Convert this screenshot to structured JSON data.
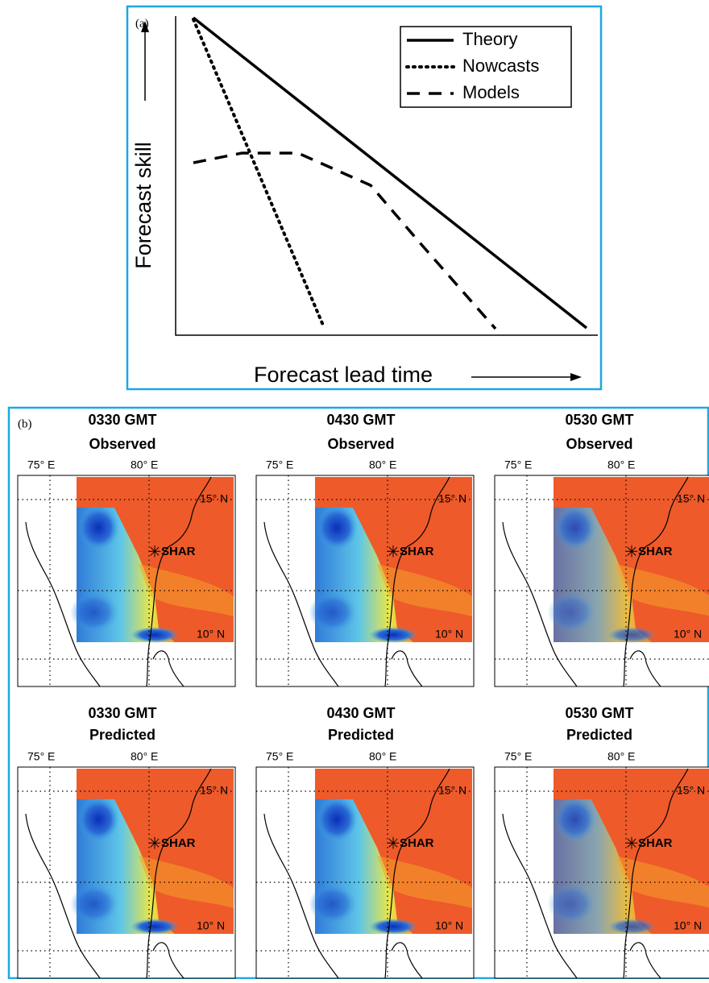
{
  "panel_a": {
    "label": "(a)",
    "y_axis_label": "Forecast skill",
    "x_axis_label": "Forecast lead time",
    "legend": [
      "Theory",
      "Nowcasts",
      "Models"
    ]
  },
  "panel_b": {
    "label": "(b)",
    "lon_labels": [
      "75° E",
      "80° E"
    ],
    "lat_labels": [
      "15° N",
      "10° N"
    ],
    "station": "SHAR",
    "panels": [
      {
        "time": "0330 GMT",
        "kind": "Observed"
      },
      {
        "time": "0430 GMT",
        "kind": "Observed"
      },
      {
        "time": "0530 GMT",
        "kind": "Observed"
      },
      {
        "time": "0330 GMT",
        "kind": "Predicted"
      },
      {
        "time": "0430 GMT",
        "kind": "Predicted"
      },
      {
        "time": "0530 GMT",
        "kind": "Predicted"
      }
    ]
  }
}
